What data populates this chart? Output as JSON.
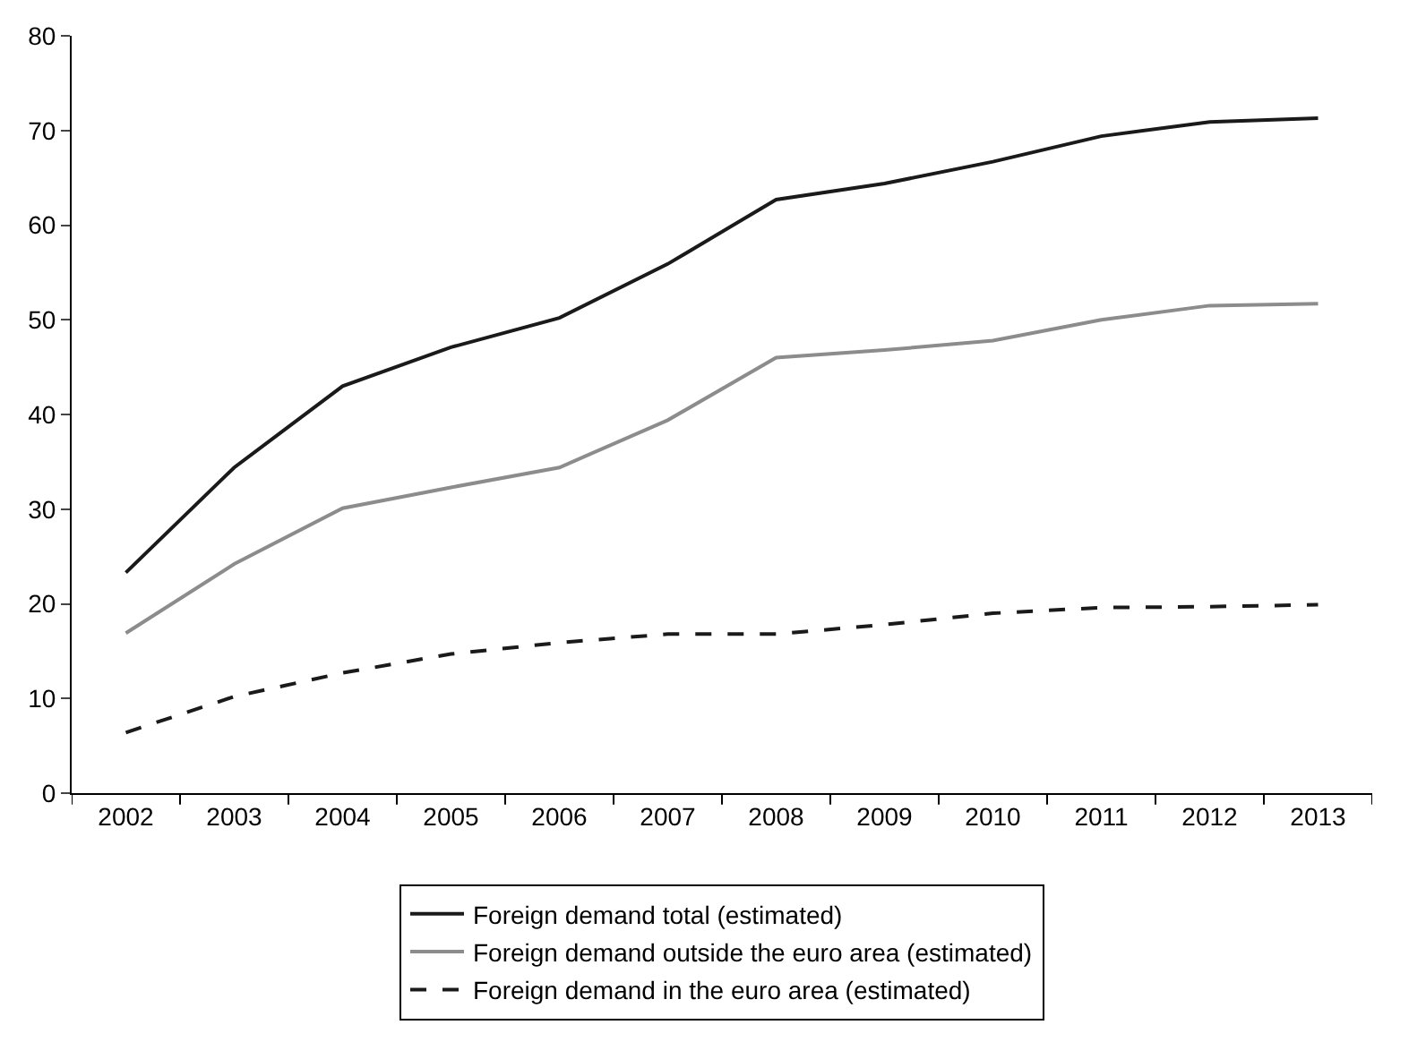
{
  "chart_data": {
    "type": "line",
    "categories": [
      "2002",
      "2003",
      "2004",
      "2005",
      "2006",
      "2007",
      "2008",
      "2009",
      "2010",
      "2011",
      "2012",
      "2013"
    ],
    "series": [
      {
        "name": "Foreign demand total (estimated)",
        "color": "#1a1a1a",
        "line_style": "solid",
        "values": [
          23.3,
          34.4,
          43.0,
          47.1,
          50.2,
          55.9,
          62.7,
          64.4,
          66.7,
          69.4,
          70.9,
          71.3
        ]
      },
      {
        "name": "Foreign demand outside the euro area (estimated)",
        "color": "#8c8c8c",
        "line_style": "solid",
        "values": [
          16.9,
          24.2,
          30.1,
          32.3,
          34.4,
          39.4,
          46.0,
          46.8,
          47.8,
          50.0,
          51.5,
          51.7
        ]
      },
      {
        "name": "Foreign demand in the euro area (estimated)",
        "color": "#1a1a1a",
        "line_style": "dashed",
        "values": [
          6.4,
          10.2,
          12.7,
          14.7,
          15.9,
          16.8,
          16.8,
          17.8,
          19.0,
          19.6,
          19.7,
          19.9
        ]
      }
    ],
    "ylim": [
      0,
      80
    ],
    "yticks": [
      0,
      10,
      20,
      30,
      40,
      50,
      60,
      70,
      80
    ],
    "legend": "bottom",
    "marker": "none"
  }
}
